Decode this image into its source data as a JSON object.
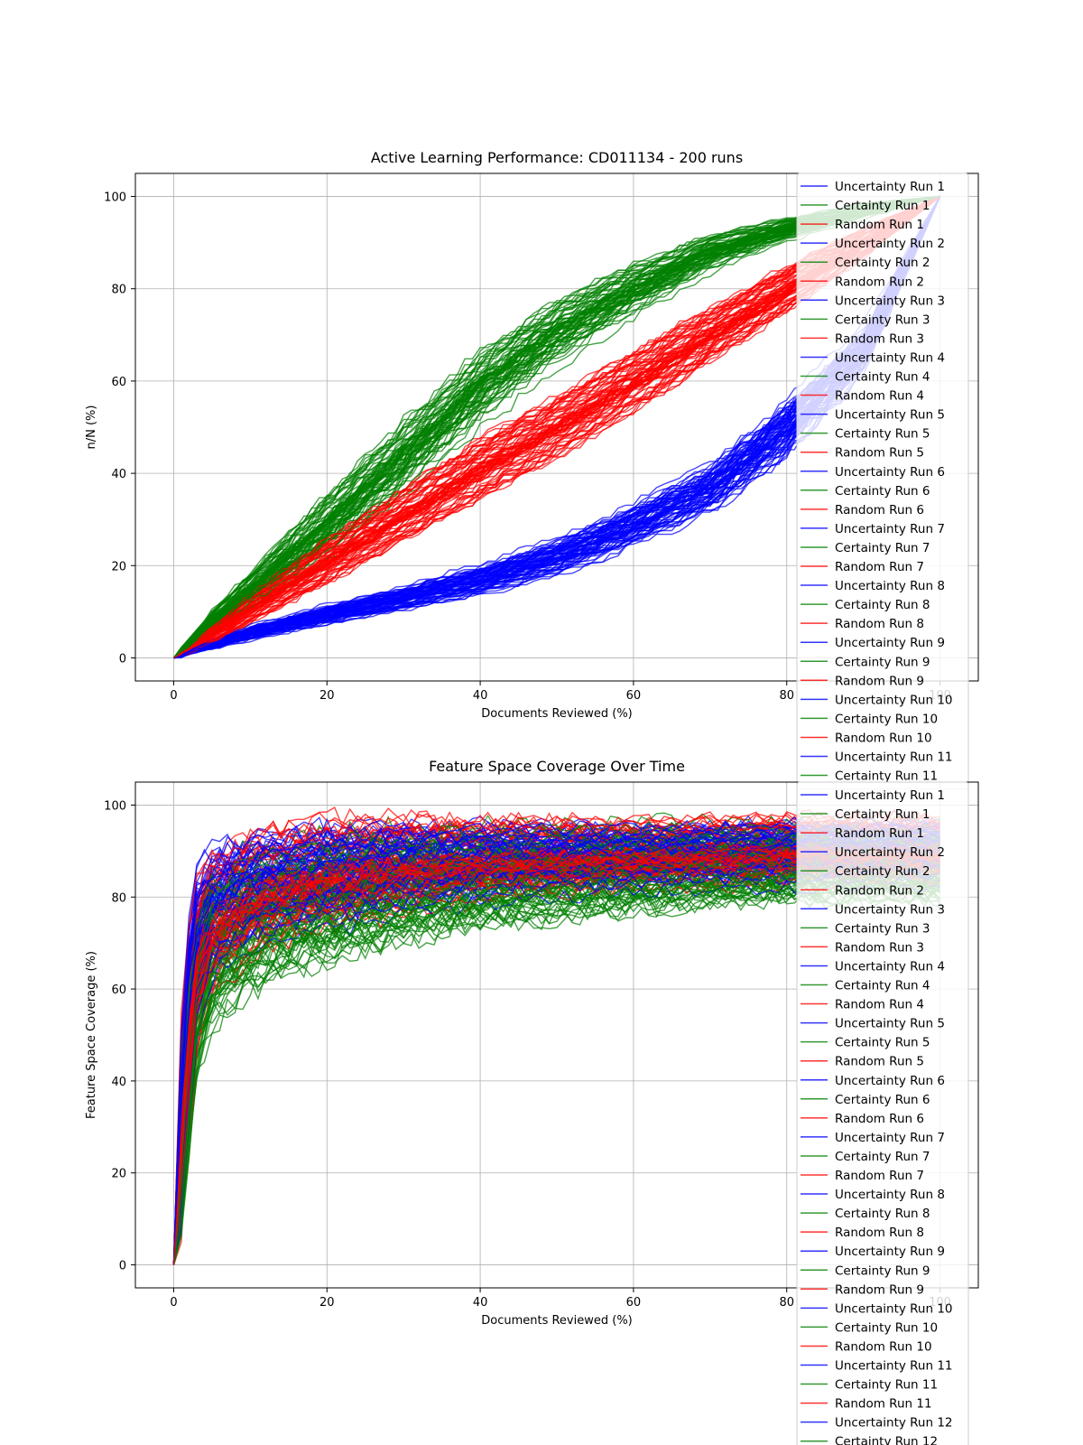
{
  "chart_data": [
    {
      "type": "line",
      "title": "Active Learning Performance: CD011134 - 200 runs",
      "xlabel": "Documents Reviewed (%)",
      "ylabel": "n/N (%)",
      "xlim": [
        -5,
        105
      ],
      "ylim": [
        -5,
        105
      ],
      "xticks": [
        0,
        20,
        40,
        60,
        80,
        100
      ],
      "yticks": [
        0,
        20,
        40,
        60,
        80,
        100
      ],
      "grid": true,
      "legend_position": "upper-right",
      "series_groups": [
        {
          "name": "Uncertainty",
          "color": "#0000ff",
          "runs": 200,
          "x": [
            0,
            1,
            2,
            5,
            10,
            15,
            20,
            30,
            40,
            50,
            60,
            70,
            80,
            90,
            100
          ],
          "y": [
            0,
            0.5,
            1.5,
            3,
            5.5,
            7.5,
            9.5,
            13,
            17,
            22,
            29,
            37,
            50,
            67,
            100
          ],
          "spread": [
            0,
            0.3,
            0.5,
            0.8,
            1.2,
            1.4,
            1.6,
            2,
            2.5,
            3,
            3.5,
            4,
            4.5,
            4,
            0
          ]
        },
        {
          "name": "Certainty",
          "color": "#008000",
          "runs": 200,
          "x": [
            0,
            1,
            2,
            5,
            10,
            15,
            20,
            30,
            40,
            50,
            60,
            70,
            80,
            90,
            100
          ],
          "y": [
            0,
            1.5,
            3,
            8,
            15,
            22,
            29,
            44,
            59,
            71,
            80,
            88,
            93,
            97,
            100
          ],
          "spread": [
            0,
            0.5,
            0.8,
            1.5,
            2.5,
            3.5,
            4.5,
            5,
            5,
            4.5,
            3.5,
            2.5,
            1.5,
            1,
            0
          ]
        },
        {
          "name": "Random",
          "color": "#ff0000",
          "runs": 200,
          "x": [
            0,
            1,
            2,
            5,
            10,
            15,
            20,
            30,
            40,
            50,
            60,
            70,
            80,
            90,
            100
          ],
          "y": [
            0,
            1,
            2,
            5,
            11,
            16,
            21,
            31,
            41,
            50,
            60,
            70,
            80,
            90,
            100
          ],
          "spread": [
            0,
            0.4,
            0.7,
            1.2,
            2,
            2.5,
            3,
            3.5,
            4,
            4,
            4,
            3.5,
            3,
            2,
            0
          ]
        }
      ],
      "legend_entries": [
        "Uncertainty Run 1",
        "Certainty Run 1",
        "Random Run 1",
        "Uncertainty Run 2",
        "Certainty Run 2",
        "Random Run 2",
        "Uncertainty Run 3",
        "Certainty Run 3",
        "Random Run 3",
        "Uncertainty Run 4",
        "Certainty Run 4",
        "Random Run 4",
        "Uncertainty Run 5",
        "Certainty Run 5",
        "Random Run 5",
        "Uncertainty Run 6",
        "Certainty Run 6",
        "Random Run 6",
        "Uncertainty Run 7",
        "Certainty Run 7",
        "Random Run 7",
        "Uncertainty Run 8",
        "Certainty Run 8",
        "Random Run 8",
        "Uncertainty Run 9",
        "Certainty Run 9",
        "Random Run 9",
        "Uncertainty Run 10",
        "Certainty Run 10",
        "Random Run 10",
        "Uncertainty Run 11",
        "Certainty Run 11"
      ]
    },
    {
      "type": "line",
      "title": "Feature Space Coverage Over Time",
      "xlabel": "Documents Reviewed (%)",
      "ylabel": "Feature Space Coverage (%)",
      "xlim": [
        -5,
        105
      ],
      "ylim": [
        -5,
        105
      ],
      "xticks": [
        0,
        20,
        40,
        60,
        80,
        100
      ],
      "yticks": [
        0,
        20,
        40,
        60,
        80,
        100
      ],
      "grid": true,
      "legend_position": "upper-right",
      "series_groups": [
        {
          "name": "Uncertainty",
          "color": "#0000ff",
          "runs": 200,
          "x": [
            0,
            1,
            2,
            3,
            5,
            10,
            15,
            20,
            30,
            40,
            60,
            80,
            100
          ],
          "y": [
            0,
            30,
            55,
            70,
            78,
            82,
            84,
            85,
            87,
            88,
            89,
            90,
            90
          ],
          "spread": [
            0,
            15,
            15,
            12,
            10,
            9,
            8,
            8,
            7,
            6,
            5,
            5,
            5
          ]
        },
        {
          "name": "Certainty",
          "color": "#008000",
          "runs": 200,
          "x": [
            0,
            1,
            2,
            3,
            5,
            10,
            15,
            20,
            30,
            40,
            60,
            80,
            100
          ],
          "y": [
            0,
            25,
            45,
            58,
            68,
            74,
            77,
            79,
            82,
            84,
            86,
            87,
            87
          ],
          "spread": [
            0,
            15,
            15,
            13,
            12,
            11,
            10,
            10,
            9,
            8,
            7,
            6,
            6
          ]
        },
        {
          "name": "Random",
          "color": "#ff0000",
          "runs": 200,
          "x": [
            0,
            1,
            2,
            3,
            5,
            10,
            15,
            20,
            30,
            40,
            60,
            80,
            100
          ],
          "y": [
            0,
            28,
            50,
            65,
            74,
            80,
            83,
            85,
            87,
            88,
            89,
            90,
            90
          ],
          "spread": [
            0,
            15,
            15,
            12,
            10,
            9,
            8,
            8,
            7,
            6,
            5,
            5,
            5
          ]
        }
      ],
      "legend_entries": [
        "Uncertainty Run 1",
        "Certainty Run 1",
        "Random Run 1",
        "Uncertainty Run 2",
        "Certainty Run 2",
        "Random Run 2",
        "Uncertainty Run 3",
        "Certainty Run 3",
        "Random Run 3",
        "Uncertainty Run 4",
        "Certainty Run 4",
        "Random Run 4",
        "Uncertainty Run 5",
        "Certainty Run 5",
        "Random Run 5",
        "Uncertainty Run 6",
        "Certainty Run 6",
        "Random Run 6",
        "Uncertainty Run 7",
        "Certainty Run 7",
        "Random Run 7",
        "Uncertainty Run 8",
        "Certainty Run 8",
        "Random Run 8",
        "Uncertainty Run 9",
        "Certainty Run 9",
        "Random Run 9",
        "Uncertainty Run 10",
        "Certainty Run 10",
        "Random Run 10",
        "Uncertainty Run 11",
        "Certainty Run 11",
        "Random Run 11",
        "Uncertainty Run 12",
        "Certainty Run 12"
      ]
    }
  ]
}
